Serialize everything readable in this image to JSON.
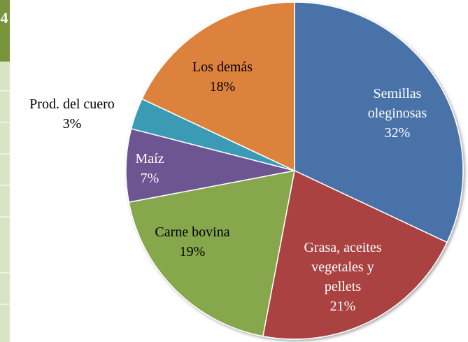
{
  "side_tab": "4",
  "chart_data": {
    "type": "pie",
    "categories": [
      "Semillas oleginosas",
      "Grasa, aceites vegetales y pellets",
      "Carne bovina",
      "Maíz",
      "Prod. del cuero",
      "Los demás"
    ],
    "values": [
      32,
      21,
      19,
      7,
      3,
      18
    ],
    "value_labels": [
      "32%",
      "21%",
      "19%",
      "7%",
      "3%",
      "18%"
    ],
    "colors": [
      "#4a72a8",
      "#a9423f",
      "#86a74b",
      "#6d5592",
      "#3b9bb5",
      "#dc823c"
    ],
    "label_colors": [
      "#ffffff",
      "#ffffff",
      "#000000",
      "#ffffff",
      "#000000",
      "#000000"
    ]
  }
}
